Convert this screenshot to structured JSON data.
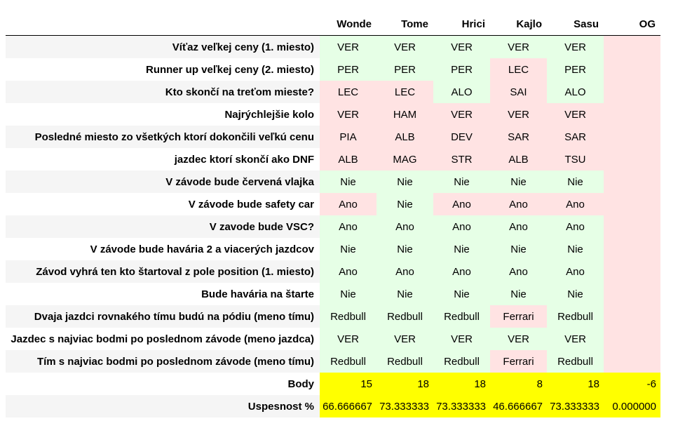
{
  "columns": [
    "",
    "Wonde",
    "Tome",
    "Hrici",
    "Kajlo",
    "Sasu",
    "OG"
  ],
  "rows": [
    {
      "label": "Víťaz veľkej ceny (1. miesto)",
      "values": [
        "VER",
        "VER",
        "VER",
        "VER",
        "VER",
        ""
      ],
      "status": [
        "g",
        "g",
        "g",
        "g",
        "g",
        "r"
      ]
    },
    {
      "label": "Runner up veľkej ceny (2. miesto)",
      "values": [
        "PER",
        "PER",
        "PER",
        "LEC",
        "PER",
        ""
      ],
      "status": [
        "g",
        "g",
        "g",
        "r",
        "g",
        "r"
      ]
    },
    {
      "label": "Kto skončí na treťom mieste?",
      "values": [
        "LEC",
        "LEC",
        "ALO",
        "SAI",
        "ALO",
        ""
      ],
      "status": [
        "r",
        "r",
        "g",
        "r",
        "g",
        "r"
      ]
    },
    {
      "label": "Najrýchlejšie kolo",
      "values": [
        "VER",
        "HAM",
        "VER",
        "VER",
        "VER",
        ""
      ],
      "status": [
        "r",
        "r",
        "r",
        "r",
        "r",
        "r"
      ]
    },
    {
      "label": "Posledné miesto zo všetkých ktorí dokončili veľkú cenu",
      "values": [
        "PIA",
        "ALB",
        "DEV",
        "SAR",
        "SAR",
        ""
      ],
      "status": [
        "r",
        "r",
        "r",
        "r",
        "r",
        "r"
      ]
    },
    {
      "label": "jazdec ktorí skončí ako DNF",
      "values": [
        "ALB",
        "MAG",
        "STR",
        "ALB",
        "TSU",
        ""
      ],
      "status": [
        "r",
        "r",
        "r",
        "r",
        "r",
        "r"
      ]
    },
    {
      "label": "V závode bude červená vlajka",
      "values": [
        "Nie",
        "Nie",
        "Nie",
        "Nie",
        "Nie",
        ""
      ],
      "status": [
        "g",
        "g",
        "g",
        "g",
        "g",
        "r"
      ]
    },
    {
      "label": "V závode bude safety car",
      "values": [
        "Ano",
        "Nie",
        "Ano",
        "Ano",
        "Ano",
        ""
      ],
      "status": [
        "r",
        "g",
        "r",
        "r",
        "r",
        "r"
      ]
    },
    {
      "label": "V zavode bude VSC?",
      "values": [
        "Ano",
        "Ano",
        "Ano",
        "Ano",
        "Ano",
        ""
      ],
      "status": [
        "g",
        "g",
        "g",
        "g",
        "g",
        "r"
      ]
    },
    {
      "label": "V závode bude havária 2 a viacerých jazdcov",
      "values": [
        "Nie",
        "Nie",
        "Nie",
        "Nie",
        "Nie",
        ""
      ],
      "status": [
        "g",
        "g",
        "g",
        "g",
        "g",
        "r"
      ]
    },
    {
      "label": "Závod vyhrá ten kto štartoval z pole position (1. miesto)",
      "values": [
        "Ano",
        "Ano",
        "Ano",
        "Ano",
        "Ano",
        ""
      ],
      "status": [
        "g",
        "g",
        "g",
        "g",
        "g",
        "r"
      ]
    },
    {
      "label": "Bude havária na štarte",
      "values": [
        "Nie",
        "Nie",
        "Nie",
        "Nie",
        "Nie",
        ""
      ],
      "status": [
        "g",
        "g",
        "g",
        "g",
        "g",
        "r"
      ]
    },
    {
      "label": "Dvaja jazdci rovnakého tímu budú na pódiu (meno tímu)",
      "values": [
        "Redbull",
        "Redbull",
        "Redbull",
        "Ferrari",
        "Redbull",
        ""
      ],
      "status": [
        "g",
        "g",
        "g",
        "r",
        "g",
        "r"
      ]
    },
    {
      "label": "Jazdec s najviac bodmi po poslednom závode (meno jazdca)",
      "values": [
        "VER",
        "VER",
        "VER",
        "VER",
        "VER",
        ""
      ],
      "status": [
        "g",
        "g",
        "g",
        "g",
        "g",
        "r"
      ]
    },
    {
      "label": "Tím s najviac bodmi po poslednom závode (meno tímu)",
      "values": [
        "Redbull",
        "Redbull",
        "Redbull",
        "Ferrari",
        "Redbull",
        ""
      ],
      "status": [
        "g",
        "g",
        "g",
        "r",
        "g",
        "r"
      ]
    }
  ],
  "summary": [
    {
      "label": "Body",
      "values": [
        "15",
        "18",
        "18",
        "8",
        "18",
        "-6"
      ]
    },
    {
      "label": "Uspesnost %",
      "values": [
        "66.666667",
        "73.333333",
        "73.333333",
        "46.666667",
        "73.333333",
        "0.000000"
      ]
    }
  ],
  "colors": {
    "correct": "#e6ffe6",
    "wrong": "#ffe3e3",
    "highlight": "#ffff00",
    "stripe": "#f5f5f5"
  }
}
